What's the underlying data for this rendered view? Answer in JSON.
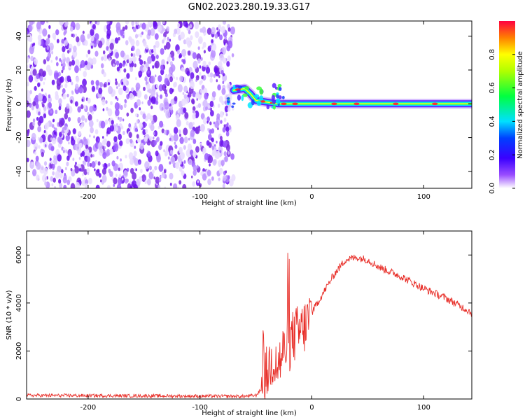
{
  "title": "GN02.2023.280.19.33.G17",
  "colors": {
    "snr_line": "#e8302a",
    "noise_dot": "#7a2ae0",
    "axis": "#000000"
  },
  "chart_data": [
    {
      "type": "heatmap",
      "title": "GN02.2023.280.19.33.G17",
      "xlabel": "Height of straight line (km)",
      "ylabel": "Frequency (Hz)",
      "xlim": [
        -255,
        143
      ],
      "ylim": [
        -50,
        49
      ],
      "xticks": [
        -200,
        -100,
        0,
        100
      ],
      "yticks": [
        -40,
        -20,
        0,
        20,
        40
      ],
      "colorbar": {
        "label": "Normalized spectral amplitude",
        "range": [
          0.0,
          1.0
        ],
        "ticks": [
          "0.0",
          "0.2",
          "0.4",
          "0.6",
          "0.8"
        ],
        "colormap": [
          "#ffffff",
          "#7a00ff",
          "#0000ff",
          "#00ffff",
          "#00ff00",
          "#ffff00",
          "#ff8000",
          "#ff0040"
        ]
      },
      "noise_region_x": [
        -255,
        -70
      ],
      "signal_track": [
        {
          "x": -70,
          "y": 8
        },
        {
          "x": -60,
          "y": 9
        },
        {
          "x": -55,
          "y": 6
        },
        {
          "x": -50,
          "y": 2
        },
        {
          "x": -40,
          "y": 1
        },
        {
          "x": -30,
          "y": 0
        },
        {
          "x": -20,
          "y": 0
        },
        {
          "x": 0,
          "y": 0
        },
        {
          "x": 143,
          "y": 0
        }
      ]
    },
    {
      "type": "line",
      "xlabel": "Height of straight line (km)",
      "ylabel": "SNR (10 * v/v)",
      "xlim": [
        -255,
        143
      ],
      "ylim": [
        0,
        7000
      ],
      "xticks": [
        -200,
        -100,
        0,
        100
      ],
      "yticks": [
        0,
        2000,
        4000,
        6000
      ],
      "series": [
        {
          "x": [
            -255,
            -200,
            -150,
            -100,
            -60,
            -50,
            -45,
            -40,
            -35,
            -30,
            -25,
            -20,
            -15,
            -10,
            -5,
            0,
            10,
            20,
            30,
            40,
            50,
            60,
            80,
            100,
            120,
            143
          ],
          "values": [
            150,
            140,
            130,
            120,
            110,
            150,
            400,
            1100,
            1700,
            1400,
            2000,
            2300,
            2700,
            2800,
            3100,
            3600,
            4400,
            5200,
            5800,
            5900,
            5800,
            5500,
            5100,
            4600,
            4200,
            3600
          ]
        }
      ]
    }
  ]
}
